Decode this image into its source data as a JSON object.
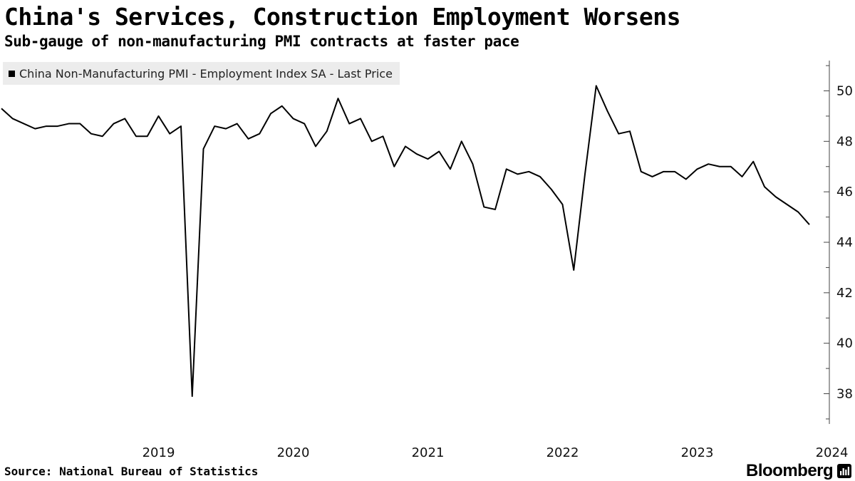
{
  "header": {
    "title": "China's Services, Construction Employment Worsens",
    "subtitle": "Sub-gauge of non-manufacturing PMI contracts at faster pace"
  },
  "footer": {
    "source": "Source: National Bureau of Statistics",
    "brand": "Bloomberg"
  },
  "chart_data": {
    "type": "line",
    "title": "China's Services, Construction Employment Worsens",
    "subtitle": "Sub-gauge of non-manufacturing PMI contracts at faster pace",
    "xlabel": "",
    "ylabel": "",
    "ylim": [
      36.8,
      51.2
    ],
    "y_ticks": [
      38,
      40,
      42,
      44,
      46,
      48,
      50
    ],
    "x_tick_labels": [
      "2019",
      "2020",
      "2021",
      "2022",
      "2023",
      "2024"
    ],
    "legend": {
      "position": "top-left",
      "entries": [
        "China Non-Manufacturing PMI - Employment Index SA - Last Price"
      ]
    },
    "grid": false,
    "series": [
      {
        "name": "China Non-Manufacturing PMI - Employment Index SA - Last Price",
        "color": "#000000",
        "start": "2018-05",
        "frequency": "monthly",
        "values": [
          49.3,
          48.9,
          48.7,
          48.5,
          48.6,
          48.6,
          48.7,
          48.7,
          48.3,
          48.2,
          48.7,
          48.9,
          48.2,
          48.2,
          49.0,
          48.3,
          48.6,
          37.9,
          47.7,
          48.6,
          48.5,
          48.7,
          48.1,
          48.3,
          49.1,
          49.4,
          48.9,
          48.7,
          47.8,
          48.4,
          49.7,
          48.7,
          48.9,
          48.0,
          48.2,
          47.0,
          47.8,
          47.5,
          47.3,
          47.6,
          46.9,
          48.0,
          47.1,
          45.4,
          45.3,
          46.9,
          46.7,
          46.8,
          46.6,
          46.1,
          45.5,
          42.9,
          46.7,
          50.2,
          49.2,
          48.3,
          48.4,
          46.8,
          46.6,
          46.8,
          46.8,
          46.5,
          46.9,
          47.1,
          47.0,
          47.0,
          46.6,
          47.2,
          46.2,
          45.8,
          45.5,
          45.2,
          44.7
        ]
      }
    ]
  }
}
